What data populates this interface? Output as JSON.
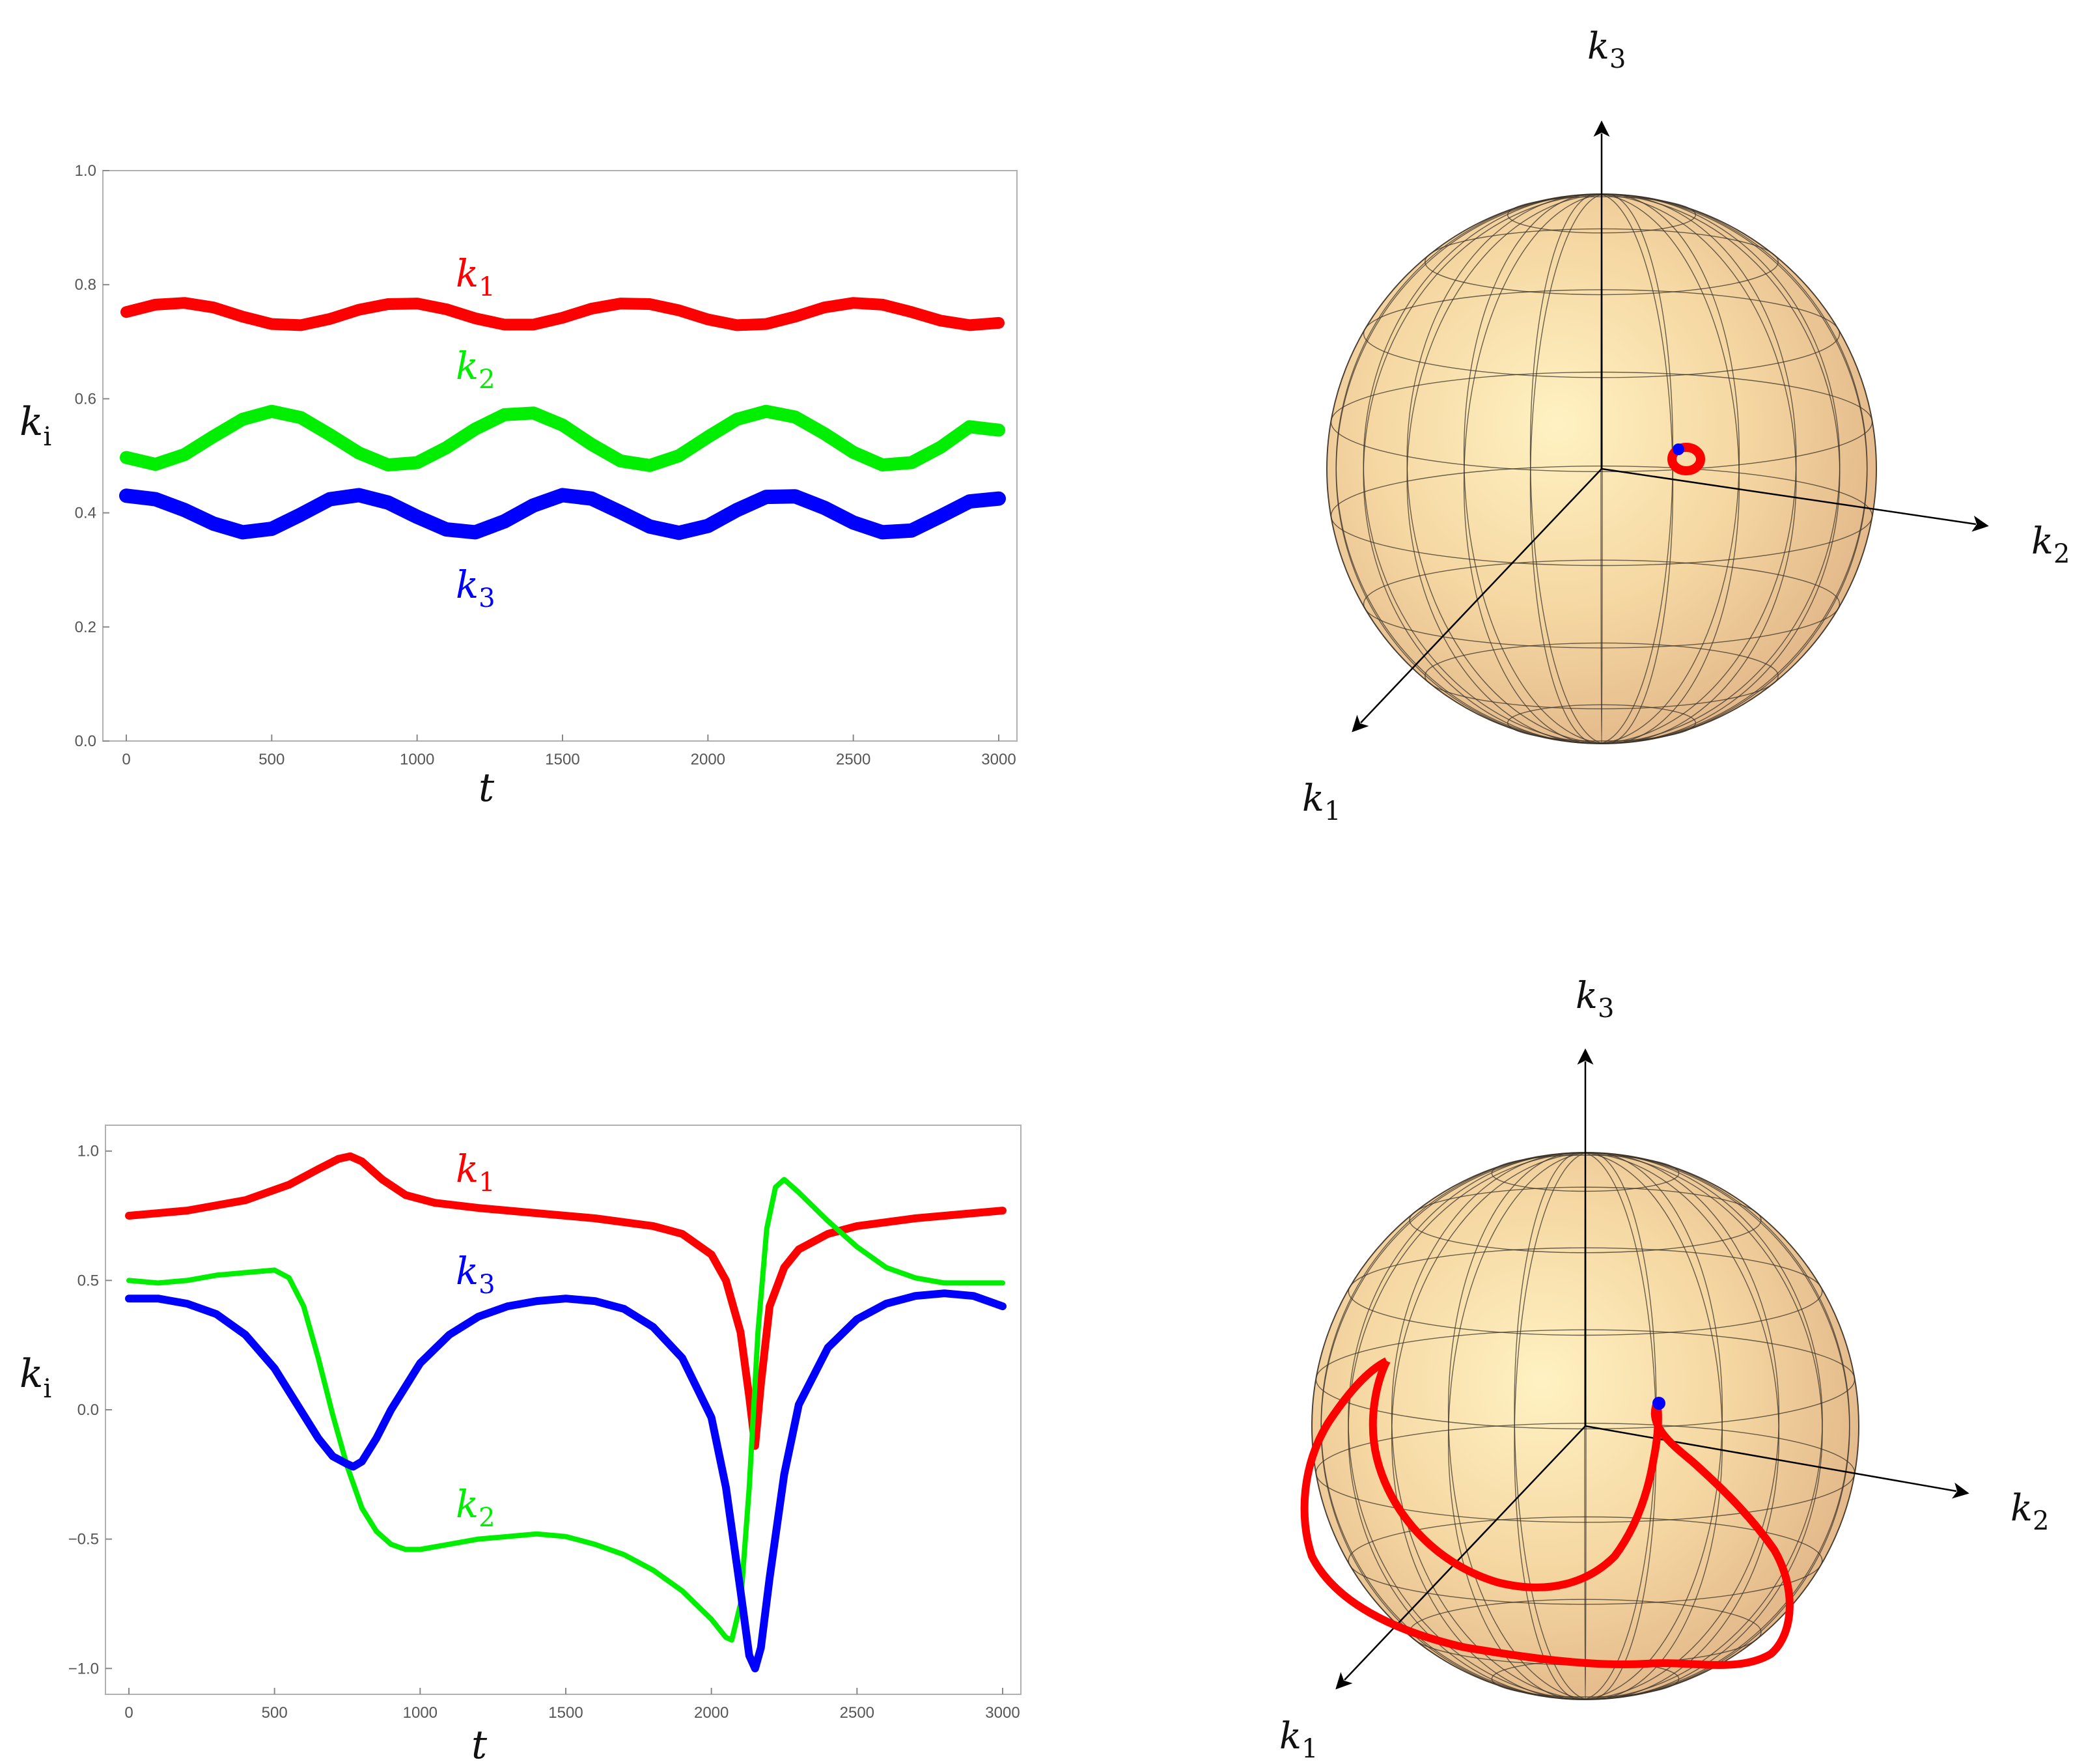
{
  "colors": {
    "k1": "#ff0000",
    "k2": "#00ee00",
    "k3": "#0000ff",
    "frame": "#b0b0b0",
    "sphere": "#f3cd9b"
  },
  "chart_data": [
    {
      "type": "line",
      "xlabel": "t",
      "ylabel": "k",
      "ylabel_sub": "i",
      "xlim": [
        0,
        3000
      ],
      "ylim": [
        0,
        1
      ],
      "xticks": [
        "0",
        "500",
        "1000",
        "1500",
        "2000",
        "2500",
        "3000"
      ],
      "yticks": [
        "0.0",
        "0.2",
        "0.4",
        "0.6",
        "0.8",
        "1.0"
      ],
      "series": [
        {
          "name": "k",
          "sub": "1",
          "color": "#ff0000",
          "x": [
            0,
            100,
            200,
            300,
            400,
            500,
            600,
            700,
            800,
            900,
            1000,
            1100,
            1200,
            1300,
            1400,
            1500,
            1600,
            1700,
            1800,
            1900,
            2000,
            2100,
            2200,
            2300,
            2400,
            2500,
            2600,
            2700,
            2800,
            2900,
            3000
          ],
          "y": [
            0.752,
            0.765,
            0.768,
            0.76,
            0.744,
            0.731,
            0.729,
            0.74,
            0.756,
            0.766,
            0.767,
            0.757,
            0.741,
            0.73,
            0.73,
            0.742,
            0.758,
            0.767,
            0.766,
            0.755,
            0.739,
            0.729,
            0.731,
            0.744,
            0.76,
            0.768,
            0.765,
            0.752,
            0.737,
            0.729,
            0.733
          ]
        },
        {
          "name": "k",
          "sub": "2",
          "color": "#00ee00",
          "x": [
            0,
            100,
            200,
            300,
            400,
            500,
            600,
            700,
            800,
            900,
            1000,
            1100,
            1200,
            1300,
            1400,
            1500,
            1600,
            1700,
            1800,
            1900,
            2000,
            2100,
            2200,
            2300,
            2400,
            2500,
            2600,
            2700,
            2800,
            2900,
            3000
          ],
          "y": [
            0.497,
            0.485,
            0.502,
            0.534,
            0.564,
            0.578,
            0.567,
            0.537,
            0.505,
            0.484,
            0.488,
            0.514,
            0.547,
            0.572,
            0.575,
            0.554,
            0.52,
            0.491,
            0.483,
            0.5,
            0.533,
            0.564,
            0.578,
            0.568,
            0.539,
            0.506,
            0.484,
            0.488,
            0.515,
            0.551,
            0.545
          ]
        },
        {
          "name": "k",
          "sub": "3",
          "color": "#0000ff",
          "x": [
            0,
            100,
            200,
            300,
            400,
            500,
            600,
            700,
            800,
            900,
            1000,
            1100,
            1200,
            1300,
            1400,
            1500,
            1600,
            1700,
            1800,
            1900,
            2000,
            2100,
            2200,
            2300,
            2400,
            2500,
            2600,
            2700,
            2800,
            2900,
            3000
          ],
          "y": [
            0.43,
            0.424,
            0.405,
            0.381,
            0.366,
            0.372,
            0.397,
            0.424,
            0.431,
            0.418,
            0.393,
            0.371,
            0.366,
            0.385,
            0.413,
            0.431,
            0.425,
            0.401,
            0.376,
            0.365,
            0.377,
            0.405,
            0.428,
            0.429,
            0.409,
            0.383,
            0.366,
            0.369,
            0.394,
            0.42,
            0.425
          ]
        }
      ]
    },
    {
      "type": "line",
      "xlabel": "t",
      "ylabel": "k",
      "ylabel_sub": "i",
      "xlim": [
        0,
        3000
      ],
      "ylim": [
        -1.1,
        1.1
      ],
      "xticks": [
        "0",
        "500",
        "1000",
        "1500",
        "2000",
        "2500",
        "3000"
      ],
      "yticks": [
        "-1.0",
        "-0.5",
        "0.0",
        "0.5",
        "1.0"
      ],
      "series": [
        {
          "name": "k",
          "sub": "1",
          "color": "#ff0000",
          "x": [
            0,
            200,
            400,
            550,
            650,
            720,
            760,
            800,
            870,
            950,
            1050,
            1200,
            1400,
            1600,
            1800,
            1900,
            2000,
            2050,
            2100,
            2130,
            2150,
            2170,
            2200,
            2250,
            2300,
            2400,
            2500,
            2700,
            3000
          ],
          "y": [
            0.75,
            0.77,
            0.81,
            0.87,
            0.93,
            0.97,
            0.98,
            0.96,
            0.89,
            0.83,
            0.8,
            0.78,
            0.76,
            0.74,
            0.71,
            0.68,
            0.6,
            0.5,
            0.3,
            0.05,
            -0.14,
            0.1,
            0.4,
            0.55,
            0.62,
            0.68,
            0.71,
            0.74,
            0.77
          ]
        },
        {
          "name": "k",
          "sub": "2",
          "color": "#00ee00",
          "x": [
            0,
            100,
            200,
            300,
            400,
            500,
            550,
            600,
            650,
            700,
            750,
            800,
            850,
            900,
            950,
            1000,
            1100,
            1200,
            1300,
            1400,
            1500,
            1600,
            1700,
            1800,
            1900,
            2000,
            2050,
            2070,
            2100,
            2130,
            2160,
            2190,
            2220,
            2250,
            2300,
            2400,
            2500,
            2600,
            2700,
            2800,
            2900,
            3000
          ],
          "y": [
            0.5,
            0.49,
            0.5,
            0.52,
            0.53,
            0.54,
            0.51,
            0.4,
            0.2,
            -0.02,
            -0.22,
            -0.38,
            -0.47,
            -0.52,
            -0.54,
            -0.54,
            -0.52,
            -0.5,
            -0.49,
            -0.48,
            -0.49,
            -0.52,
            -0.56,
            -0.62,
            -0.7,
            -0.81,
            -0.88,
            -0.89,
            -0.75,
            -0.3,
            0.3,
            0.7,
            0.86,
            0.89,
            0.84,
            0.73,
            0.63,
            0.55,
            0.51,
            0.49,
            0.49,
            0.49
          ]
        },
        {
          "name": "k",
          "sub": "3",
          "color": "#0000ff",
          "x": [
            0,
            100,
            200,
            300,
            400,
            500,
            600,
            650,
            700,
            750,
            770,
            800,
            850,
            900,
            1000,
            1100,
            1200,
            1300,
            1400,
            1500,
            1600,
            1700,
            1800,
            1900,
            2000,
            2050,
            2100,
            2130,
            2150,
            2170,
            2200,
            2250,
            2300,
            2400,
            2500,
            2600,
            2700,
            2800,
            2900,
            3000
          ],
          "y": [
            0.43,
            0.43,
            0.41,
            0.37,
            0.29,
            0.16,
            -0.02,
            -0.11,
            -0.18,
            -0.21,
            -0.22,
            -0.2,
            -0.11,
            0.0,
            0.18,
            0.29,
            0.36,
            0.4,
            0.42,
            0.43,
            0.42,
            0.39,
            0.32,
            0.2,
            -0.03,
            -0.3,
            -0.7,
            -0.95,
            -1.0,
            -0.92,
            -0.65,
            -0.25,
            0.02,
            0.24,
            0.35,
            0.41,
            0.44,
            0.45,
            0.44,
            0.4
          ]
        }
      ]
    }
  ],
  "spheres": [
    {
      "axis_labels": [
        {
          "name": "k",
          "sub": "3"
        },
        {
          "name": "k",
          "sub": "2"
        },
        {
          "name": "k",
          "sub": "1"
        }
      ]
    },
    {
      "axis_labels": [
        {
          "name": "k",
          "sub": "3"
        },
        {
          "name": "k",
          "sub": "2"
        },
        {
          "name": "k",
          "sub": "1"
        }
      ]
    }
  ]
}
